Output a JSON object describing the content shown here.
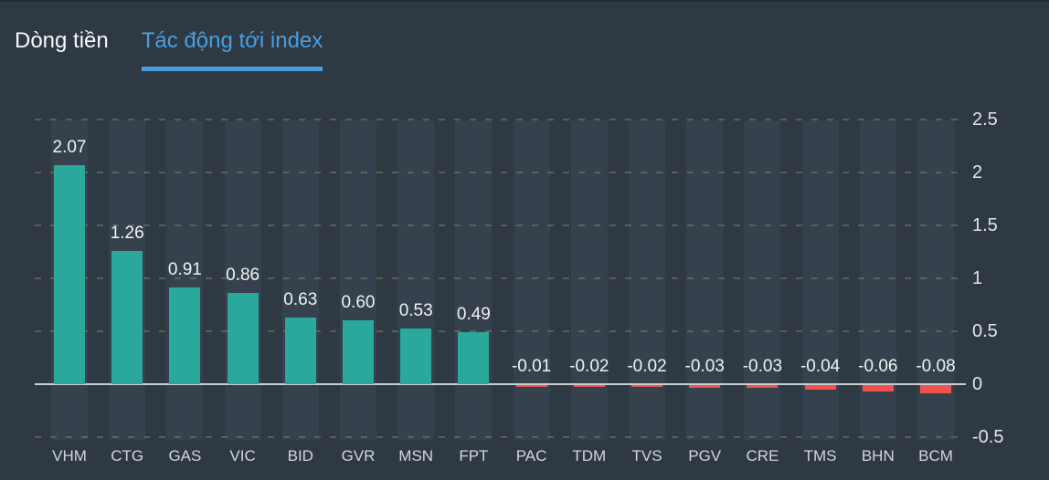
{
  "tabs": [
    {
      "label": "Dòng tiền",
      "active": false
    },
    {
      "label": "Tác động tới index",
      "active": true
    }
  ],
  "colors": {
    "background": "#2e3944",
    "band": "#35414d",
    "positive_bar": "#2aa89c",
    "negative_bar": "#ef5350",
    "zero_line": "#c9ced3",
    "gridline_dash": "#6b5f45",
    "tab_active": "#4a9edd",
    "tab_inactive": "#f7f9fa",
    "label_text": "#f0f2f4"
  },
  "chart_data": {
    "type": "bar",
    "title": "",
    "categories": [
      "VHM",
      "CTG",
      "GAS",
      "VIC",
      "BID",
      "GVR",
      "MSN",
      "FPT",
      "PAC",
      "TDM",
      "TVS",
      "PGV",
      "CRE",
      "TMS",
      "BHN",
      "BCM"
    ],
    "values": [
      2.07,
      1.26,
      0.91,
      0.86,
      0.63,
      0.6,
      0.53,
      0.49,
      -0.01,
      -0.02,
      -0.02,
      -0.03,
      -0.03,
      -0.04,
      -0.06,
      -0.08
    ],
    "value_labels": [
      "2.07",
      "1.26",
      "0.91",
      "0.86",
      "0.63",
      "0.60",
      "0.53",
      "0.49",
      "-0.01",
      "-0.02",
      "-0.02",
      "-0.03",
      "-0.03",
      "-0.04",
      "-0.06",
      "-0.08"
    ],
    "xlabel": "",
    "ylabel": "",
    "y_axis": {
      "position": "right",
      "min": -0.5,
      "max": 2.5,
      "ticks": [
        2.5,
        2,
        1.5,
        1,
        0.5,
        0,
        -0.5
      ],
      "tick_labels": [
        "2.5",
        "2",
        "1.5",
        "1",
        "0.5",
        "0",
        "-0.5"
      ]
    },
    "grid": "horizontal dashed lines, solid zero line, vertical background bands per category",
    "legend": "none"
  }
}
